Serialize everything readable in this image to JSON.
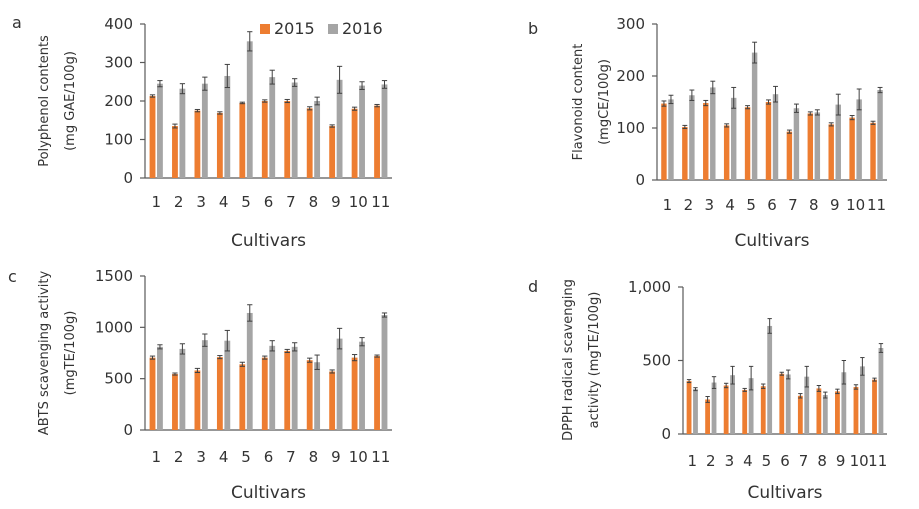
{
  "colors": {
    "y2015": "#ED7D31",
    "y2016": "#A5A5A5",
    "axis": "#595959",
    "err": "#404040"
  },
  "chart_data": [
    {
      "id": "a",
      "panel_label": "a",
      "type": "bar",
      "xlabel": "Cultivars",
      "ylabel": [
        "Polyphenol contents",
        "(mg GAE/100g)"
      ],
      "ylim": [
        0,
        400
      ],
      "yticks": [
        0,
        100,
        200,
        300,
        400
      ],
      "ytick_labels": [
        "0",
        "100",
        "200",
        "300",
        "400"
      ],
      "categories": [
        "1",
        "2",
        "3",
        "4",
        "5",
        "6",
        "7",
        "8",
        "9",
        "10",
        "11"
      ],
      "legend": true,
      "legend_position": "top-right",
      "series": [
        {
          "name": "2015",
          "values": [
            213,
            135,
            175,
            169,
            195,
            200,
            200,
            181,
            135,
            180,
            188
          ],
          "errors": [
            3,
            5,
            3,
            3,
            2,
            3,
            4,
            4,
            3,
            4,
            3
          ]
        },
        {
          "name": "2016",
          "values": [
            245,
            232,
            245,
            265,
            355,
            262,
            248,
            200,
            255,
            240,
            243
          ],
          "errors": [
            8,
            13,
            17,
            30,
            25,
            18,
            10,
            10,
            35,
            10,
            10
          ]
        }
      ]
    },
    {
      "id": "b",
      "panel_label": "b",
      "type": "bar",
      "xlabel": "Cultivars",
      "ylabel": [
        "Flavonoid content",
        "(mgCE/100g)"
      ],
      "ylim": [
        0,
        300
      ],
      "yticks": [
        0,
        100,
        200,
        300
      ],
      "ytick_labels": [
        "0",
        "100",
        "200",
        "300"
      ],
      "categories": [
        "1",
        "2",
        "3",
        "4",
        "5",
        "6",
        "7",
        "8",
        "9",
        "10",
        "11"
      ],
      "legend": false,
      "series": [
        {
          "name": "2015",
          "values": [
            147,
            102,
            148,
            105,
            140,
            150,
            93,
            128,
            107,
            120,
            110
          ],
          "errors": [
            5,
            3,
            5,
            3,
            3,
            4,
            3,
            3,
            3,
            4,
            3
          ]
        },
        {
          "name": "2016",
          "values": [
            155,
            163,
            178,
            158,
            245,
            165,
            138,
            130,
            145,
            155,
            173
          ],
          "errors": [
            8,
            10,
            12,
            20,
            20,
            15,
            8,
            5,
            20,
            20,
            5
          ]
        }
      ]
    },
    {
      "id": "c",
      "panel_label": "c",
      "type": "bar",
      "xlabel": "Cultivars",
      "ylabel": [
        "ABTS scavenging activity",
        "(mgTE/100g)"
      ],
      "ylim": [
        0,
        1500
      ],
      "yticks": [
        0,
        500,
        1000,
        1500
      ],
      "ytick_labels": [
        "0",
        "500",
        "1000",
        "1500"
      ],
      "categories": [
        "1",
        "2",
        "3",
        "4",
        "5",
        "6",
        "7",
        "8",
        "9",
        "10",
        "11"
      ],
      "legend": false,
      "series": [
        {
          "name": "2015",
          "values": [
            705,
            545,
            580,
            710,
            640,
            705,
            770,
            680,
            570,
            705,
            720
          ],
          "errors": [
            15,
            10,
            20,
            15,
            20,
            15,
            15,
            20,
            15,
            30,
            10
          ]
        },
        {
          "name": "2016",
          "values": [
            810,
            790,
            875,
            870,
            1140,
            820,
            810,
            660,
            890,
            860,
            1120
          ],
          "errors": [
            20,
            50,
            60,
            100,
            80,
            50,
            40,
            70,
            100,
            40,
            20
          ]
        }
      ]
    },
    {
      "id": "d",
      "panel_label": "d",
      "type": "bar",
      "xlabel": "Cultivars",
      "ylabel": [
        "DPPH radical scavenging",
        "activity (mgTE/100g)"
      ],
      "ylim": [
        0,
        1000
      ],
      "yticks": [
        0,
        500,
        1000
      ],
      "ytick_labels": [
        "0",
        "500",
        "1,000"
      ],
      "categories": [
        "1",
        "2",
        "3",
        "4",
        "5",
        "6",
        "7",
        "8",
        "9",
        "10",
        "11"
      ],
      "legend": false,
      "series": [
        {
          "name": "2015",
          "values": [
            360,
            235,
            330,
            300,
            325,
            410,
            260,
            310,
            290,
            320,
            370
          ],
          "errors": [
            10,
            20,
            15,
            10,
            15,
            10,
            15,
            20,
            15,
            15,
            10
          ]
        },
        {
          "name": "2016",
          "values": [
            305,
            350,
            400,
            380,
            735,
            405,
            390,
            265,
            420,
            460,
            585
          ],
          "errors": [
            10,
            40,
            60,
            80,
            50,
            30,
            70,
            20,
            80,
            60,
            30
          ]
        }
      ]
    }
  ]
}
